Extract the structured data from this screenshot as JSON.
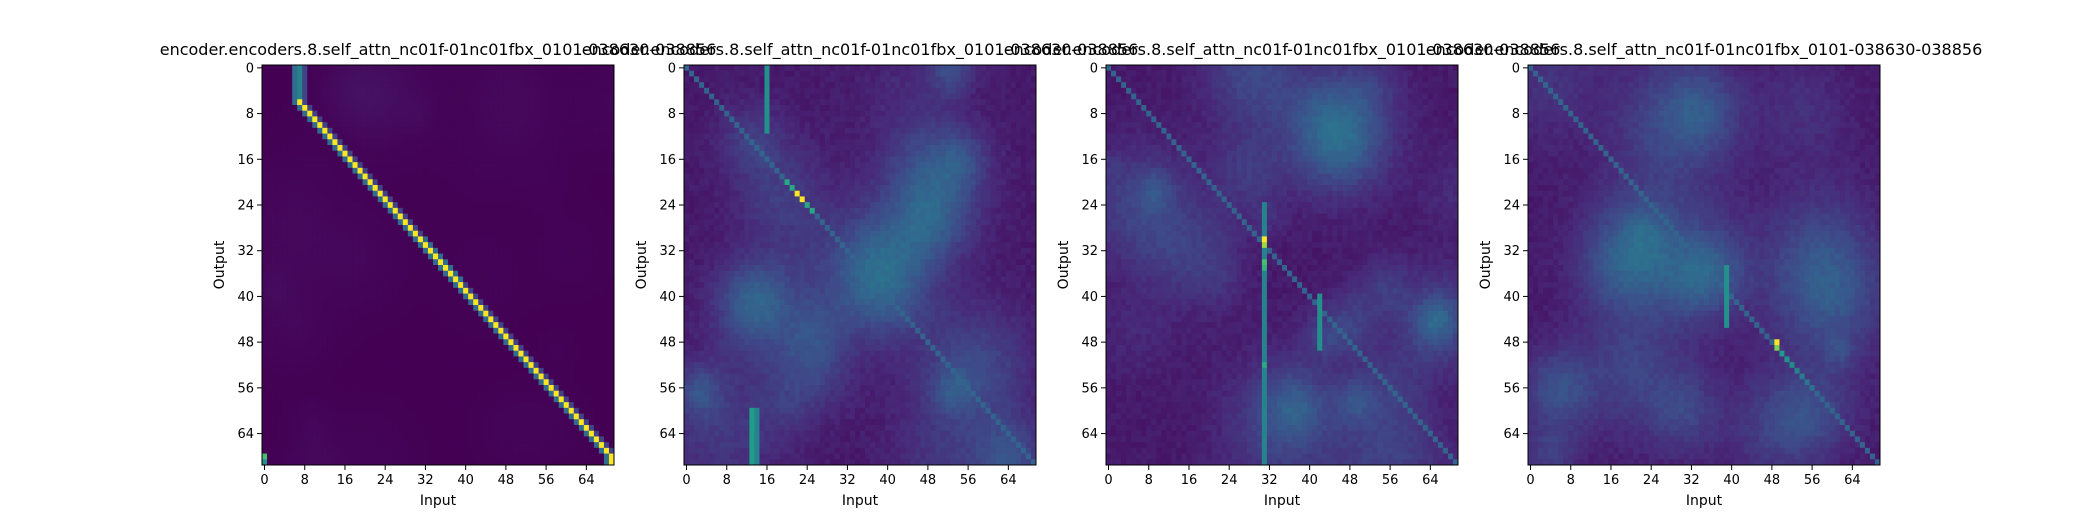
{
  "colors": {
    "background": "#ffffff",
    "colormap": "viridis",
    "axis": "#000000"
  },
  "chart_data": [
    {
      "type": "heatmap",
      "title": "encoder.encoders.8.self_attn_nc01f-01nc01fbx_0101-038630-038856",
      "xlabel": "Input",
      "ylabel": "Output",
      "size": 70,
      "xlim": [
        0,
        70
      ],
      "ylim": [
        70,
        0
      ],
      "xticks": [
        "0",
        "8",
        "16",
        "24",
        "32",
        "40",
        "48",
        "56",
        "64"
      ],
      "yticks": [
        "0",
        "8",
        "16",
        "24",
        "32",
        "40",
        "48",
        "56",
        "64"
      ],
      "pattern": "strong diagonal"
    },
    {
      "type": "heatmap",
      "title": "encoder.encoders.8.self_attn_nc01f-01nc01fbx_0101-038630-038856",
      "xlabel": "Input",
      "ylabel": "Output",
      "size": 70,
      "xlim": [
        0,
        70
      ],
      "ylim": [
        70,
        0
      ],
      "xticks": [
        "0",
        "8",
        "16",
        "24",
        "32",
        "40",
        "48",
        "56",
        "64"
      ],
      "yticks": [
        "0",
        "8",
        "16",
        "24",
        "32",
        "40",
        "48",
        "56",
        "64"
      ],
      "pattern": "diffuse with weak diagonal, peak near (22,22)"
    },
    {
      "type": "heatmap",
      "title": "encoder.encoders.8.self_attn_nc01f-01nc01fbx_0101-038630-038856",
      "xlabel": "Input",
      "ylabel": "Output",
      "size": 70,
      "xlim": [
        0,
        70
      ],
      "ylim": [
        70,
        0
      ],
      "xticks": [
        "0",
        "8",
        "16",
        "24",
        "32",
        "40",
        "48",
        "56",
        "64"
      ],
      "yticks": [
        "0",
        "8",
        "16",
        "24",
        "32",
        "40",
        "48",
        "56",
        "64"
      ],
      "pattern": "diffuse with diagonal, peak near (31,31), column at 31"
    },
    {
      "type": "heatmap",
      "title": "encoder.encoders.8.self_attn_nc01f-01nc01fbx_0101-038630-038856",
      "xlabel": "Input",
      "ylabel": "Output",
      "size": 70,
      "xlim": [
        0,
        70
      ],
      "ylim": [
        70,
        0
      ],
      "xticks": [
        "0",
        "8",
        "16",
        "24",
        "32",
        "40",
        "48",
        "56",
        "64"
      ],
      "yticks": [
        "0",
        "8",
        "16",
        "24",
        "32",
        "40",
        "48",
        "56",
        "64"
      ],
      "pattern": "diffuse with diagonal, peak near (49,49)"
    }
  ]
}
